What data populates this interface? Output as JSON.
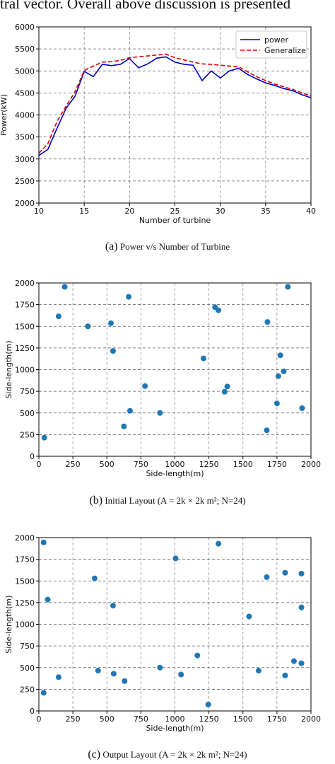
{
  "intro_text": "tral vector. Overall above discussion is presented",
  "chart_data": [
    {
      "type": "line",
      "xlabel": "Number of turbine",
      "ylabel": "Power(kW)",
      "xlim": [
        10,
        40
      ],
      "ylim": [
        2000,
        6000
      ],
      "xticks": [
        10,
        15,
        20,
        25,
        30,
        35,
        40
      ],
      "yticks": [
        2000,
        2500,
        3000,
        3500,
        4000,
        4500,
        5000,
        5500,
        6000
      ],
      "grid": true,
      "legend_position": "top-right",
      "series": [
        {
          "name": "power",
          "color": "#0000cc",
          "style": "solid",
          "x": [
            10,
            11,
            12,
            13,
            14,
            15,
            16,
            17,
            18,
            19,
            20,
            21,
            22,
            23,
            24,
            25,
            26,
            27,
            28,
            29,
            30,
            31,
            32,
            33,
            34,
            35,
            36,
            37,
            38,
            39,
            40
          ],
          "y": [
            3080,
            3220,
            3700,
            4150,
            4430,
            4990,
            4870,
            5150,
            5120,
            5150,
            5280,
            5070,
            5160,
            5290,
            5320,
            5200,
            5150,
            5130,
            4780,
            5000,
            4840,
            5000,
            5060,
            4920,
            4820,
            4730,
            4670,
            4600,
            4550,
            4460,
            4390
          ]
        },
        {
          "name": "Generalize",
          "color": "#dd0000",
          "style": "dashed",
          "x": [
            10,
            11,
            12,
            13,
            14,
            15,
            16,
            17,
            18,
            19,
            20,
            21,
            22,
            23,
            24,
            25,
            26,
            27,
            28,
            29,
            30,
            31,
            32,
            33,
            34,
            35,
            36,
            37,
            38,
            39,
            40
          ],
          "y": [
            3130,
            3350,
            3850,
            4200,
            4530,
            5010,
            5110,
            5200,
            5210,
            5240,
            5300,
            5320,
            5340,
            5360,
            5380,
            5300,
            5250,
            5200,
            5160,
            5150,
            5130,
            5110,
            5100,
            4980,
            4870,
            4780,
            4700,
            4640,
            4580,
            4500,
            4430
          ]
        }
      ],
      "caption_label": "(a)",
      "caption_text": "Power v/s Number of Turbine"
    },
    {
      "type": "scatter",
      "xlabel": "Side-length(m)",
      "ylabel": "Side-length(m)",
      "xlim": [
        0,
        2000
      ],
      "ylim": [
        0,
        2000
      ],
      "xticks": [
        0,
        250,
        500,
        750,
        1000,
        1250,
        1500,
        1750,
        2000
      ],
      "yticks": [
        0,
        250,
        500,
        750,
        1000,
        1250,
        1500,
        1750,
        2000
      ],
      "grid": true,
      "marker_color": "#1f77b4",
      "points": [
        [
          40,
          215
        ],
        [
          145,
          1615
        ],
        [
          190,
          1955
        ],
        [
          360,
          1500
        ],
        [
          530,
          1535
        ],
        [
          545,
          1215
        ],
        [
          625,
          345
        ],
        [
          660,
          1840
        ],
        [
          670,
          525
        ],
        [
          780,
          810
        ],
        [
          890,
          500
        ],
        [
          1210,
          1130
        ],
        [
          1295,
          1720
        ],
        [
          1320,
          1685
        ],
        [
          1365,
          745
        ],
        [
          1385,
          805
        ],
        [
          1675,
          300
        ],
        [
          1680,
          1550
        ],
        [
          1750,
          610
        ],
        [
          1760,
          925
        ],
        [
          1775,
          1165
        ],
        [
          1800,
          980
        ],
        [
          1830,
          1955
        ],
        [
          1935,
          555
        ]
      ],
      "caption_label": "(b)",
      "caption_text": "Initial Layout (A = 2k × 2k m²; N=24)"
    },
    {
      "type": "scatter",
      "xlabel": "Side-length(m)",
      "ylabel": "Side-length(m)",
      "xlim": [
        0,
        2000
      ],
      "ylim": [
        0,
        2000
      ],
      "xticks": [
        0,
        250,
        500,
        750,
        1000,
        1250,
        1500,
        1750,
        2000
      ],
      "yticks": [
        0,
        250,
        500,
        750,
        1000,
        1250,
        1500,
        1750,
        2000
      ],
      "grid": true,
      "marker_color": "#1f77b4",
      "points": [
        [
          35,
          1945
        ],
        [
          35,
          210
        ],
        [
          65,
          1285
        ],
        [
          145,
          390
        ],
        [
          410,
          1530
        ],
        [
          435,
          465
        ],
        [
          545,
          1215
        ],
        [
          550,
          430
        ],
        [
          630,
          345
        ],
        [
          890,
          500
        ],
        [
          1005,
          1760
        ],
        [
          1045,
          420
        ],
        [
          1165,
          640
        ],
        [
          1245,
          75
        ],
        [
          1320,
          1930
        ],
        [
          1545,
          1090
        ],
        [
          1615,
          465
        ],
        [
          1675,
          1545
        ],
        [
          1810,
          410
        ],
        [
          1810,
          1595
        ],
        [
          1875,
          575
        ],
        [
          1930,
          550
        ],
        [
          1930,
          1585
        ],
        [
          1930,
          1195
        ]
      ],
      "caption_label": "(c)",
      "caption_text": "Output Layout (A = 2k × 2k m²; N=24)"
    }
  ]
}
